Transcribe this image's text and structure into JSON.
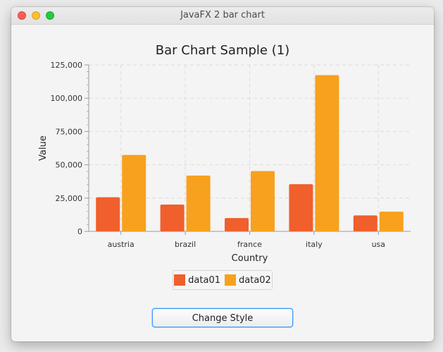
{
  "window": {
    "title": "JavaFX 2 bar chart"
  },
  "chart_data": {
    "type": "bar",
    "title": "Bar Chart Sample (1)",
    "xlabel": "Country",
    "ylabel": "Value",
    "categories": [
      "austria",
      "brazil",
      "france",
      "italy",
      "usa"
    ],
    "series": [
      {
        "name": "data01",
        "color": "#f05f2c",
        "values": [
          25601,
          20148,
          10000,
          35407,
          12000
        ]
      },
      {
        "name": "data02",
        "color": "#f7a11e",
        "values": [
          57401,
          41941,
          45263,
          117320,
          14845
        ]
      }
    ],
    "ylim": [
      0,
      125000
    ],
    "yticks": [
      0,
      25000,
      50000,
      75000,
      100000,
      125000
    ],
    "ytick_labels": [
      "0",
      "25,000",
      "50,000",
      "75,000",
      "100,000",
      "125,000"
    ],
    "grid": true,
    "legend": "bottom"
  },
  "controls": {
    "change_style_label": "Change Style"
  }
}
